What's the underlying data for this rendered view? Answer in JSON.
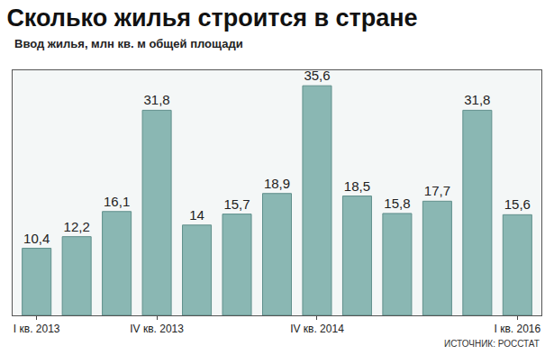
{
  "chart_data": {
    "type": "bar",
    "title": "Сколько жилья строится в стране",
    "subtitle": "Ввод жилья, млн кв. м общей площади",
    "source": "ИСТОЧНИК: РОССТАТ",
    "categories": [
      "I кв. 2013",
      null,
      null,
      "IV кв. 2013",
      null,
      null,
      null,
      "IV кв. 2014",
      null,
      null,
      null,
      null,
      "I кв. 2016"
    ],
    "values": [
      10.4,
      12.2,
      16.1,
      31.8,
      14,
      15.7,
      18.9,
      35.6,
      18.5,
      15.8,
      17.7,
      31.8,
      15.6
    ],
    "value_labels": [
      "10,4",
      "12,2",
      "16,1",
      "31,8",
      "14",
      "15,7",
      "18,9",
      "35,6",
      "18,5",
      "15,8",
      "17,7",
      "31,8",
      "15,6"
    ],
    "color": "#8ab7b3",
    "ylim": [
      0,
      38
    ],
    "data_labels": true,
    "tick_labels": "x",
    "grid": false
  }
}
